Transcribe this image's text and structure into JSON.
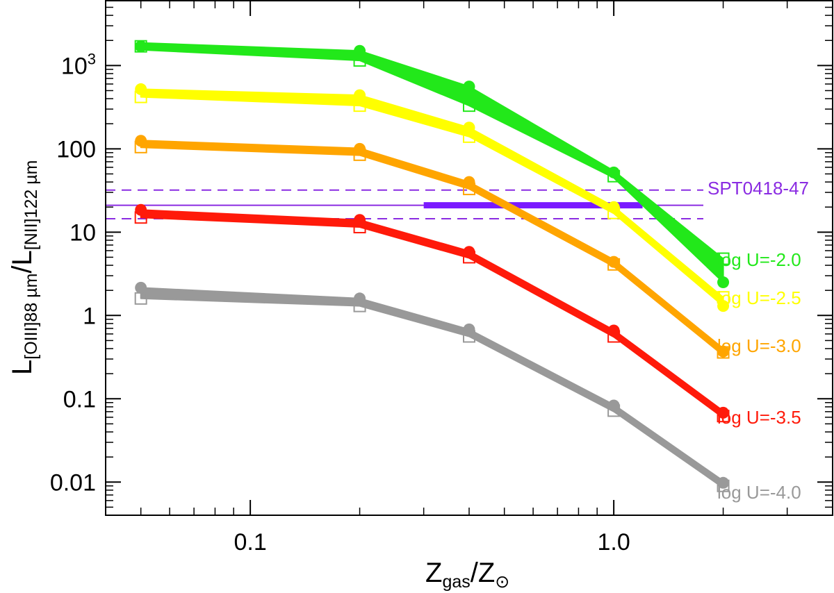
{
  "chart_data": {
    "type": "line",
    "x_scale": "log",
    "y_scale": "log",
    "xlim": [
      0.04,
      4.0
    ],
    "ylim": [
      0.004,
      6000
    ],
    "x_ticks": [
      {
        "value": 0.1,
        "label": "0.1"
      },
      {
        "value": 1.0,
        "label": "1.0"
      }
    ],
    "y_ticks": [
      {
        "value": 0.01,
        "label": "0.01"
      },
      {
        "value": 0.1,
        "label": "0.1"
      },
      {
        "value": 1,
        "label": "1"
      },
      {
        "value": 10,
        "label": "10"
      },
      {
        "value": 100,
        "label": "100"
      },
      {
        "value": 1000,
        "label": "10",
        "sup": "3"
      }
    ],
    "xlabel": {
      "main": "Z",
      "sub": "gas",
      "slash": "/Z",
      "sub2": "⊙"
    },
    "ylabel": {
      "l1": "L",
      "sub1": "[OIII]88 µm",
      "slash": "/L",
      "sub2": "[NII]122 µm"
    },
    "x": [
      0.05,
      0.2,
      0.4,
      1.0,
      2.0
    ],
    "series": [
      {
        "name": "log U=-2.0",
        "color": "#22e81a",
        "filled": [
          1700,
          1500,
          560,
          52,
          2.5
        ],
        "open": [
          1700,
          1150,
          330,
          47,
          4.8
        ]
      },
      {
        "name": "log U=-2.5",
        "color": "#ffff00",
        "filled": [
          520,
          440,
          180,
          20,
          1.3
        ],
        "open": [
          420,
          330,
          140,
          17,
          1.65
        ]
      },
      {
        "name": "log U=-3.0",
        "color": "#ffa500",
        "filled": [
          125,
          100,
          40,
          4.4,
          0.37
        ],
        "open": [
          105,
          85,
          33,
          4.1,
          0.36
        ]
      },
      {
        "name": "log U=-3.5",
        "color": "#ff1a0a",
        "filled": [
          18.5,
          14,
          5.8,
          0.66,
          0.068
        ],
        "open": [
          15,
          11.5,
          5.0,
          0.56,
          0.062
        ]
      },
      {
        "name": "log U=-4.0",
        "color": "#999999",
        "filled": [
          2.15,
          1.6,
          0.68,
          0.083,
          0.0098
        ],
        "open": [
          1.6,
          1.3,
          0.56,
          0.072,
          0.009
        ]
      }
    ],
    "reference": {
      "name": "SPT0418-47",
      "color": "#8a2be2",
      "bar_color": "#7a1aff",
      "value": 21,
      "lower": 14.5,
      "upper": 32,
      "x_range": [
        0.3,
        1.2
      ]
    }
  }
}
